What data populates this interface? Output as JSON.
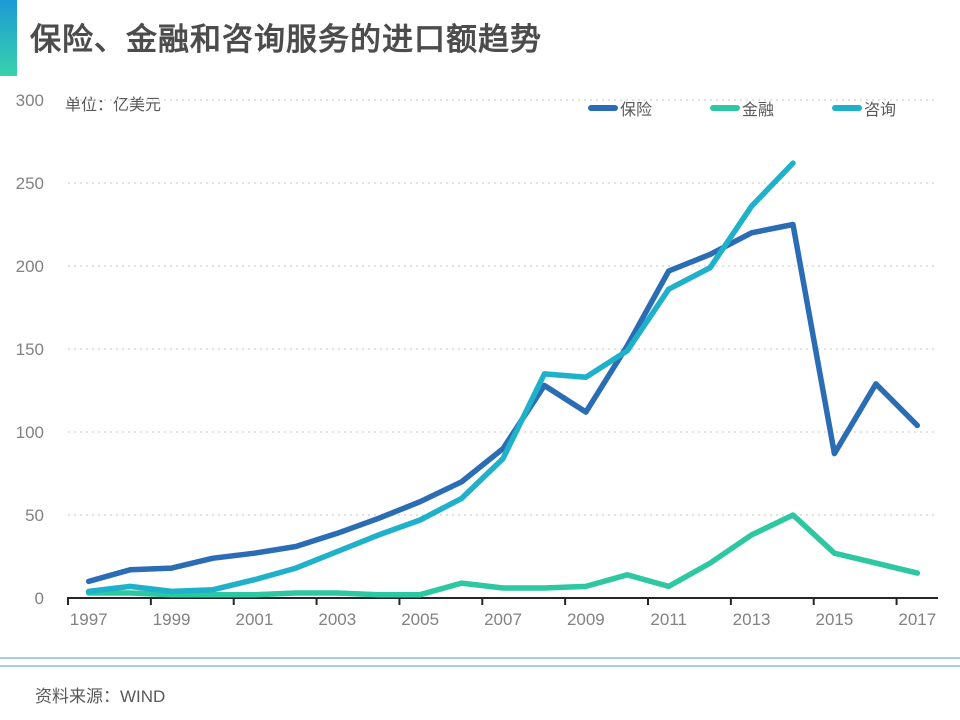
{
  "header": {
    "title": "保险、金融和咨询服务的进口额趋势"
  },
  "unit_label": "单位：亿美元",
  "legend": [
    {
      "label": "保险",
      "color": "#2a6db4"
    },
    {
      "label": "金融",
      "color": "#2dc7a2"
    },
    {
      "label": "咨询",
      "color": "#1fb1c9"
    }
  ],
  "source": "资料来源：WIND",
  "colors": {
    "title_text": "#4c4c4c",
    "axis_line": "#262626",
    "tick_label": "#828282",
    "gridline": "#d9d9d9",
    "accent_gradient_top": "#1c9ad5",
    "accent_gradient_bottom": "#38d2ab",
    "divider": "#a9cce8"
  },
  "chart_data": {
    "type": "line",
    "title": "保险、金融和咨询服务的进口额趋势",
    "unit": "亿美元",
    "x": [
      1997,
      1998,
      1999,
      2000,
      2001,
      2002,
      2003,
      2004,
      2005,
      2006,
      2007,
      2008,
      2009,
      2010,
      2011,
      2012,
      2013,
      2014,
      2015,
      2016,
      2017
    ],
    "x_tick_labels": [
      "1997",
      "1999",
      "2001",
      "2003",
      "2005",
      "2007",
      "2009",
      "2011",
      "2013",
      "2015",
      "2017"
    ],
    "ylim": [
      0,
      300
    ],
    "y_ticks": [
      0,
      50,
      100,
      150,
      200,
      250,
      300
    ],
    "grid": "horizontal-dotted",
    "legend_position": "top-right",
    "series": [
      {
        "name": "保险",
        "color": "#2a6db4",
        "values": [
          10,
          17,
          18,
          24,
          27,
          31,
          39,
          48,
          58,
          70,
          90,
          128,
          112,
          152,
          197,
          207,
          220,
          225,
          87,
          129,
          104
        ]
      },
      {
        "name": "金融",
        "color": "#2dc7a2",
        "values": [
          3,
          3,
          2,
          2,
          2,
          3,
          3,
          2,
          2,
          9,
          6,
          6,
          7,
          14,
          7,
          21,
          38,
          50,
          27,
          21,
          15
        ]
      },
      {
        "name": "咨询",
        "color": "#1fb1c9",
        "values": [
          4,
          7,
          4,
          5,
          11,
          18,
          28,
          38,
          47,
          60,
          84,
          135,
          133,
          149,
          186,
          199,
          236,
          262,
          null,
          null,
          null
        ]
      }
    ]
  }
}
